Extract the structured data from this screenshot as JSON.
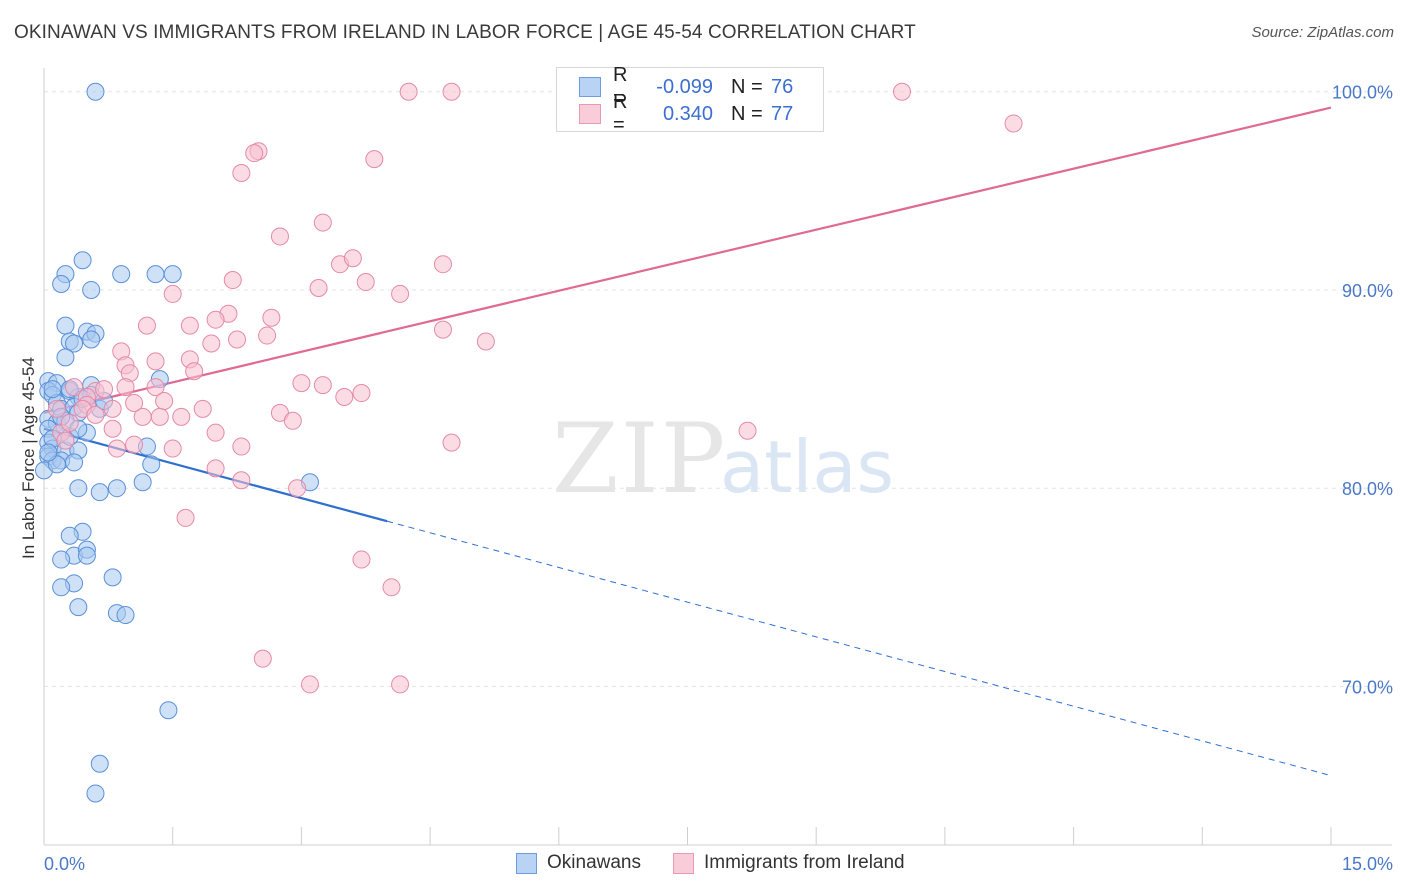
{
  "title": "OKINAWAN VS IMMIGRANTS FROM IRELAND IN LABOR FORCE | AGE 45-54 CORRELATION CHART",
  "source": "Source: ZipAtlas.com",
  "watermark": {
    "zip": "ZIP",
    "atlas": "atlas"
  },
  "legend": {
    "rows": [
      {
        "r_label": "R =",
        "r_value": "-0.099",
        "n_label": "N =",
        "n_value": "76"
      },
      {
        "r_label": "R =",
        "r_value": "0.340",
        "n_label": "N =",
        "n_value": "77"
      }
    ]
  },
  "bottom_legend": [
    "Okinawans",
    "Immigrants from Ireland"
  ],
  "colors": {
    "blue_fill": "#a8c8f0",
    "blue_stroke": "#5a90d8",
    "blue_line": "#2f6fd0",
    "pink_fill": "#f7bfd0",
    "pink_stroke": "#e48aa8",
    "pink_line": "#e06a93",
    "tick_text": "#4a78c8",
    "grid": "#e3e3e3"
  },
  "chart_data": {
    "type": "scatter",
    "title": "OKINAWAN VS IMMIGRANTS FROM IRELAND IN LABOR FORCE | AGE 45-54 CORRELATION CHART",
    "xlabel": "",
    "ylabel": "In Labor Force | Age 45-54",
    "xlim": [
      0,
      15
    ],
    "ylim": [
      62,
      101.5
    ],
    "x_tick_labels": [
      "0.0%",
      "15.0%"
    ],
    "y_ticks": [
      70,
      80,
      90,
      100
    ],
    "y_tick_labels": [
      "70.0%",
      "80.0%",
      "90.0%",
      "100.0%"
    ],
    "grid": true,
    "series": [
      {
        "name": "Okinawans",
        "r": -0.099,
        "n": 76,
        "trend": {
          "x0": 0.0,
          "y0": 83.0,
          "x_solid_end": 4.0,
          "x1": 15.0,
          "y1": 65.5
        },
        "points": [
          [
            0.6,
            100.0
          ],
          [
            0.45,
            91.5
          ],
          [
            0.25,
            90.8
          ],
          [
            0.9,
            90.8
          ],
          [
            1.3,
            90.8
          ],
          [
            1.5,
            90.8
          ],
          [
            0.2,
            90.3
          ],
          [
            0.55,
            90.0
          ],
          [
            0.25,
            88.2
          ],
          [
            0.5,
            87.9
          ],
          [
            0.6,
            87.8
          ],
          [
            0.3,
            87.4
          ],
          [
            0.55,
            87.5
          ],
          [
            0.35,
            87.3
          ],
          [
            0.25,
            86.6
          ],
          [
            0.05,
            85.4
          ],
          [
            0.15,
            85.3
          ],
          [
            0.55,
            85.2
          ],
          [
            1.35,
            85.5
          ],
          [
            0.05,
            84.9
          ],
          [
            0.1,
            84.7
          ],
          [
            0.3,
            84.9
          ],
          [
            0.4,
            84.6
          ],
          [
            0.55,
            84.7
          ],
          [
            0.15,
            84.3
          ],
          [
            0.2,
            84.0
          ],
          [
            0.35,
            84.1
          ],
          [
            0.4,
            83.8
          ],
          [
            0.65,
            84.0
          ],
          [
            0.05,
            83.5
          ],
          [
            0.15,
            83.3
          ],
          [
            0.25,
            83.4
          ],
          [
            0.05,
            83.0
          ],
          [
            0.2,
            82.8
          ],
          [
            0.5,
            82.8
          ],
          [
            0.05,
            82.3
          ],
          [
            0.1,
            82.0
          ],
          [
            0.25,
            81.9
          ],
          [
            0.4,
            81.9
          ],
          [
            1.2,
            82.1
          ],
          [
            0.05,
            81.6
          ],
          [
            0.1,
            81.4
          ],
          [
            0.2,
            81.4
          ],
          [
            0.35,
            81.3
          ],
          [
            1.25,
            81.2
          ],
          [
            0.0,
            80.9
          ],
          [
            0.15,
            81.2
          ],
          [
            1.15,
            80.3
          ],
          [
            3.1,
            80.3
          ],
          [
            0.4,
            80.0
          ],
          [
            0.65,
            79.8
          ],
          [
            0.85,
            80.0
          ],
          [
            0.45,
            77.8
          ],
          [
            0.3,
            77.6
          ],
          [
            0.35,
            76.6
          ],
          [
            0.5,
            76.9
          ],
          [
            0.5,
            76.6
          ],
          [
            0.2,
            76.4
          ],
          [
            0.8,
            75.5
          ],
          [
            0.35,
            75.2
          ],
          [
            0.2,
            75.0
          ],
          [
            0.4,
            74.0
          ],
          [
            0.85,
            73.7
          ],
          [
            0.95,
            73.6
          ],
          [
            1.45,
            68.8
          ],
          [
            0.65,
            66.1
          ],
          [
            0.6,
            64.6
          ],
          [
            0.1,
            85.0
          ],
          [
            0.3,
            85.0
          ],
          [
            0.45,
            84.5
          ],
          [
            0.2,
            83.6
          ],
          [
            0.7,
            84.4
          ],
          [
            0.1,
            82.5
          ],
          [
            0.3,
            82.6
          ],
          [
            0.05,
            81.8
          ],
          [
            0.4,
            83.0
          ]
        ]
      },
      {
        "name": "Immigrants from Ireland",
        "r": 0.34,
        "n": 77,
        "trend": {
          "x0": 0.0,
          "y0": 83.8,
          "x1": 15.0,
          "y1": 99.2
        },
        "points": [
          [
            4.25,
            100.0
          ],
          [
            4.75,
            100.0
          ],
          [
            10.0,
            100.0
          ],
          [
            11.3,
            98.4
          ],
          [
            2.5,
            97.0
          ],
          [
            2.45,
            96.9
          ],
          [
            3.85,
            96.6
          ],
          [
            2.3,
            95.9
          ],
          [
            3.25,
            93.4
          ],
          [
            2.75,
            92.7
          ],
          [
            3.45,
            91.3
          ],
          [
            3.6,
            91.6
          ],
          [
            4.65,
            91.3
          ],
          [
            2.2,
            90.5
          ],
          [
            3.75,
            90.4
          ],
          [
            3.2,
            90.1
          ],
          [
            1.5,
            89.8
          ],
          [
            4.15,
            89.8
          ],
          [
            2.15,
            88.8
          ],
          [
            2.65,
            88.6
          ],
          [
            1.7,
            88.2
          ],
          [
            1.2,
            88.2
          ],
          [
            2.0,
            88.5
          ],
          [
            4.65,
            88.0
          ],
          [
            2.6,
            87.7
          ],
          [
            2.25,
            87.5
          ],
          [
            1.95,
            87.3
          ],
          [
            5.15,
            87.4
          ],
          [
            0.9,
            86.9
          ],
          [
            1.7,
            86.5
          ],
          [
            1.3,
            86.4
          ],
          [
            0.95,
            86.2
          ],
          [
            1.75,
            85.9
          ],
          [
            1.0,
            85.8
          ],
          [
            3.0,
            85.3
          ],
          [
            3.25,
            85.2
          ],
          [
            0.95,
            85.1
          ],
          [
            1.3,
            85.1
          ],
          [
            0.35,
            85.1
          ],
          [
            0.6,
            84.9
          ],
          [
            0.5,
            84.6
          ],
          [
            3.5,
            84.6
          ],
          [
            3.7,
            84.8
          ],
          [
            1.4,
            84.4
          ],
          [
            0.8,
            84.0
          ],
          [
            1.85,
            84.0
          ],
          [
            2.75,
            83.8
          ],
          [
            0.5,
            84.2
          ],
          [
            1.15,
            83.6
          ],
          [
            2.9,
            83.4
          ],
          [
            1.6,
            83.6
          ],
          [
            1.35,
            83.6
          ],
          [
            0.8,
            83.0
          ],
          [
            2.0,
            82.8
          ],
          [
            0.2,
            82.8
          ],
          [
            1.05,
            82.2
          ],
          [
            1.5,
            82.0
          ],
          [
            0.85,
            82.0
          ],
          [
            2.3,
            82.1
          ],
          [
            4.75,
            82.3
          ],
          [
            8.2,
            82.9
          ],
          [
            2.0,
            81.0
          ],
          [
            2.3,
            80.4
          ],
          [
            2.95,
            80.0
          ],
          [
            1.65,
            78.5
          ],
          [
            3.7,
            76.4
          ],
          [
            4.05,
            75.0
          ],
          [
            2.55,
            71.4
          ],
          [
            3.1,
            70.1
          ],
          [
            4.15,
            70.1
          ],
          [
            0.15,
            84.0
          ],
          [
            0.3,
            83.3
          ],
          [
            0.45,
            84.0
          ],
          [
            0.7,
            85.0
          ],
          [
            1.05,
            84.3
          ],
          [
            0.25,
            82.4
          ],
          [
            0.6,
            83.7
          ]
        ]
      }
    ]
  }
}
